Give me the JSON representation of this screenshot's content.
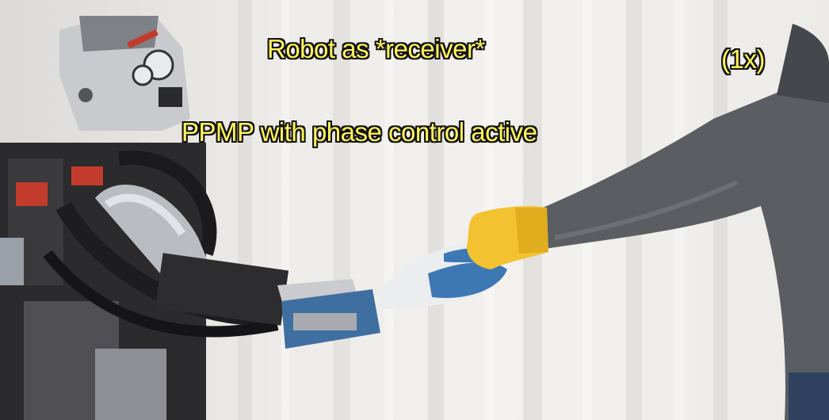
{
  "overlay": {
    "title": "Robot as *receiver*",
    "subtitle": "PPMP with phase control active",
    "speed": "(1x)"
  },
  "colors": {
    "caption_text": "#fff35a",
    "caption_outline": "#111111",
    "curtain": "#eeece9",
    "sleeve": "#5a5e62",
    "yellow_glove": "#f2c230",
    "blue_glove": "#3d78b5"
  },
  "scene": {
    "subjects": [
      "humanoid-robot",
      "human-arm",
      "handover-glove"
    ]
  }
}
